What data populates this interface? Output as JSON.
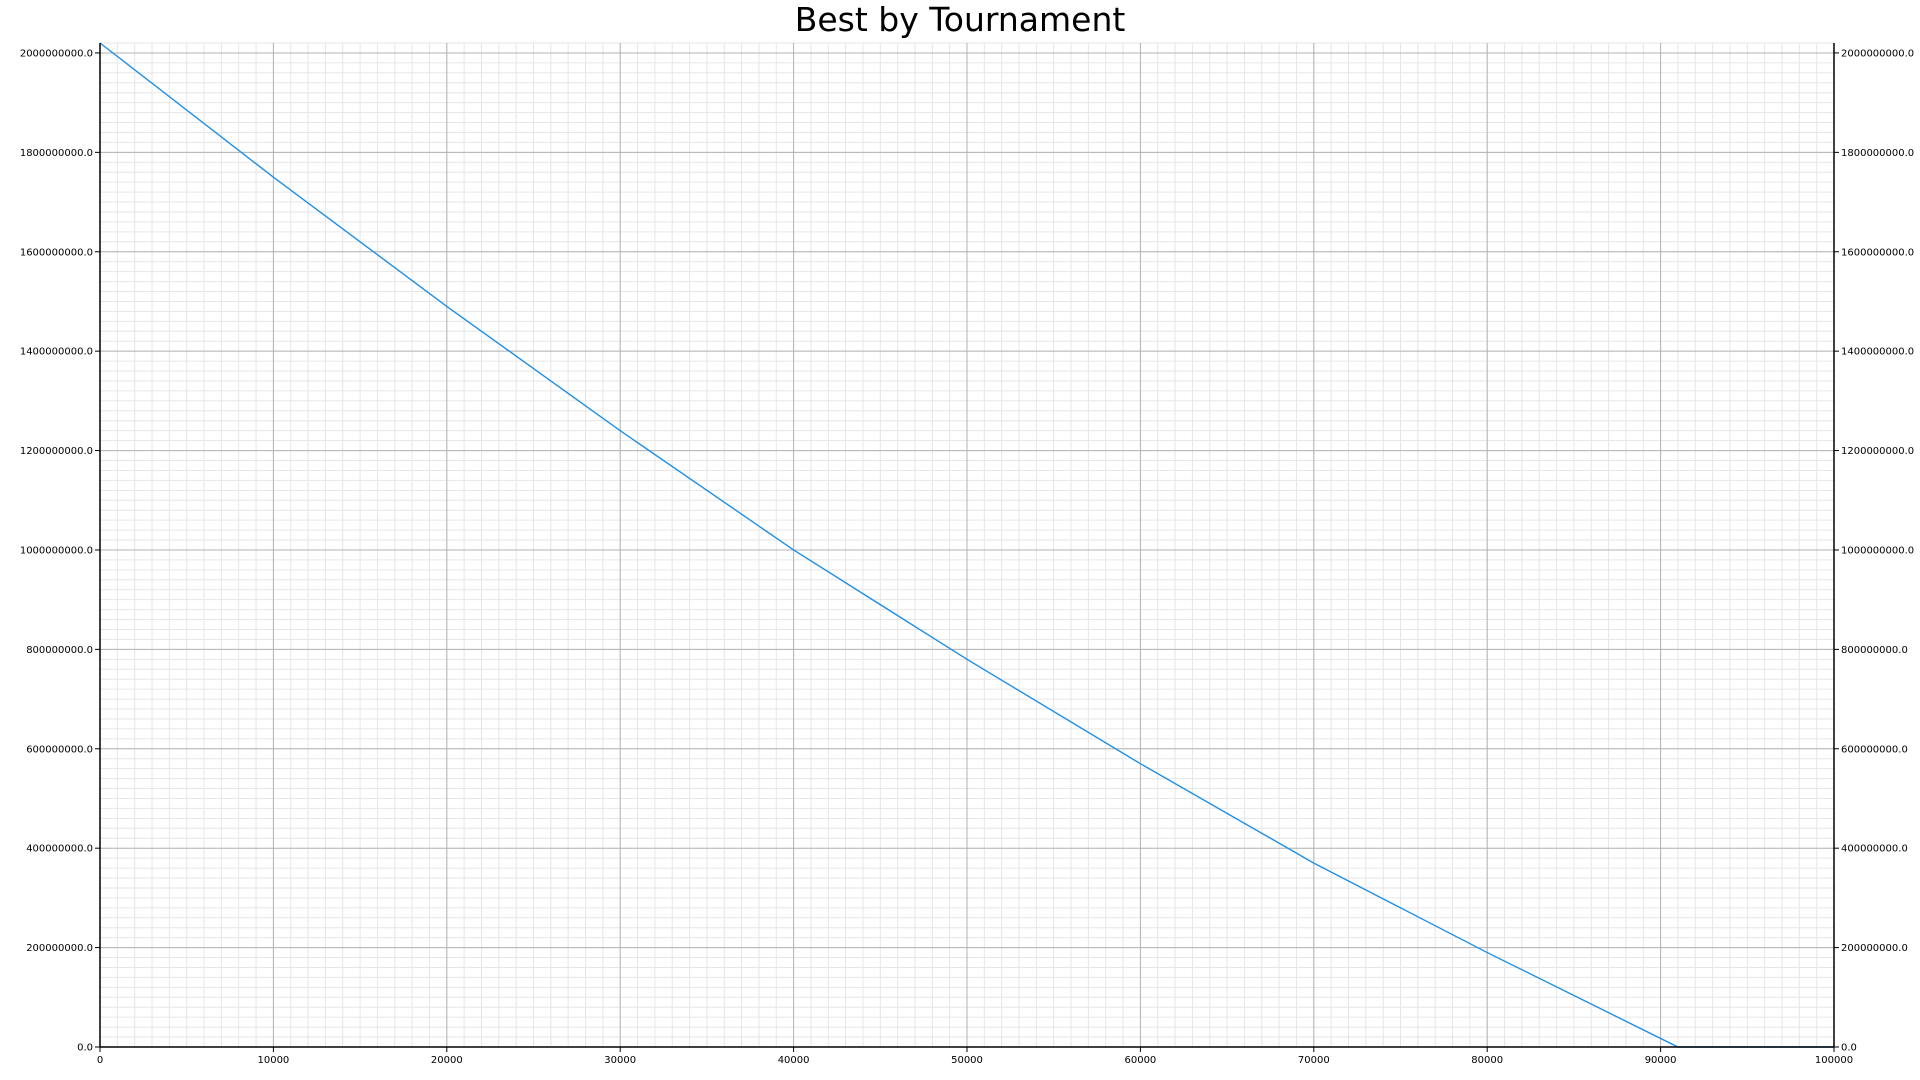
{
  "chart_data": {
    "type": "line",
    "title": "Best by Tournament",
    "xlabel": "",
    "ylabel": "",
    "xlim": [
      0,
      100000
    ],
    "ylim": [
      0,
      2020000000
    ],
    "x_ticks": [
      "0",
      "10000",
      "20000",
      "30000",
      "40000",
      "50000",
      "60000",
      "70000",
      "80000",
      "90000",
      "100000"
    ],
    "x_tick_values": [
      0,
      10000,
      20000,
      30000,
      40000,
      50000,
      60000,
      70000,
      80000,
      90000,
      100000
    ],
    "y_ticks": [
      "0.0",
      "200000000.0",
      "400000000.0",
      "600000000.0",
      "800000000.0",
      "1000000000.0",
      "1200000000.0",
      "1400000000.0",
      "1600000000.0",
      "1800000000.0",
      "2000000000.0"
    ],
    "y_tick_values": [
      0,
      200000000,
      400000000,
      600000000,
      800000000,
      1000000000,
      1200000000,
      1400000000,
      1600000000,
      1800000000,
      2000000000
    ],
    "grid": true,
    "minor_grid": true,
    "right_axis_labels": true,
    "legend": "none",
    "series": [
      {
        "color": "#1f8fe6",
        "x": [
          0,
          10000,
          20000,
          30000,
          40000,
          50000,
          60000,
          70000,
          80000,
          91000,
          100000
        ],
        "y": [
          2020000000,
          1750000000,
          1490000000,
          1240000000,
          1000000000,
          780000000,
          570000000,
          370000000,
          190000000,
          0,
          0
        ]
      }
    ]
  }
}
